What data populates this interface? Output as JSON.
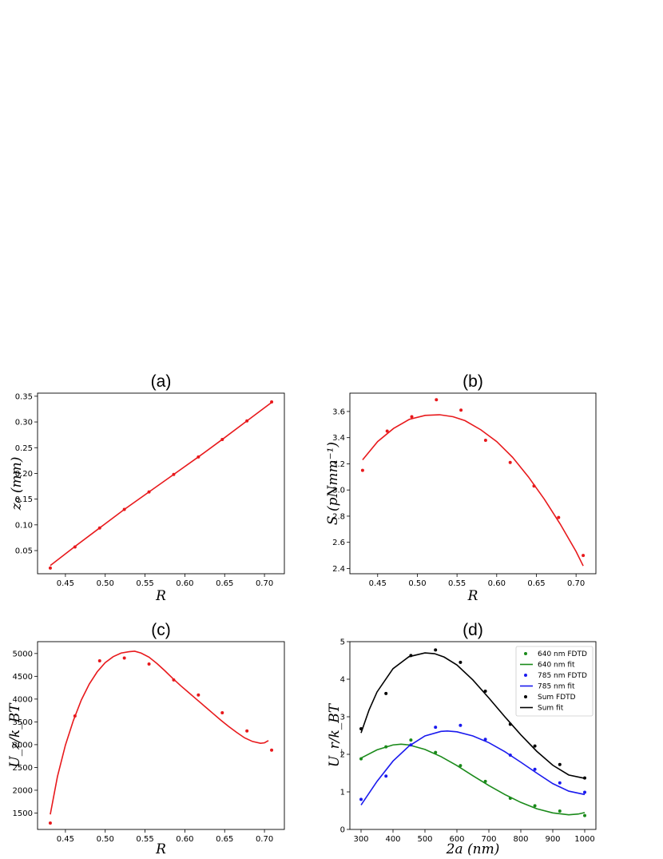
{
  "chart_data": [
    {
      "panel": "a",
      "type": "scatter",
      "title": "(a)",
      "xlabel": "R",
      "ylabel": "z₀ (mm)",
      "xlim": [
        0.415,
        0.725
      ],
      "ylim": [
        0.005,
        0.356
      ],
      "xticks": [
        "0.45",
        "0.50",
        "0.55",
        "0.60",
        "0.65",
        "0.70"
      ],
      "yticks": [
        "0.05",
        "0.10",
        "0.15",
        "0.20",
        "0.25",
        "0.30",
        "0.35"
      ],
      "series": [
        {
          "kind": "points",
          "color": "#e8191c",
          "x": [
            0.431,
            0.462,
            0.493,
            0.524,
            0.555,
            0.586,
            0.617,
            0.647,
            0.678,
            0.709
          ],
          "y": [
            0.016,
            0.057,
            0.094,
            0.13,
            0.164,
            0.198,
            0.232,
            0.266,
            0.302,
            0.339
          ]
        },
        {
          "kind": "line",
          "color": "#e8191c",
          "x": [
            0.431,
            0.462,
            0.493,
            0.524,
            0.555,
            0.586,
            0.617,
            0.647,
            0.678,
            0.709
          ],
          "y": [
            0.021,
            0.058,
            0.094,
            0.13,
            0.164,
            0.198,
            0.232,
            0.266,
            0.302,
            0.338
          ]
        }
      ],
      "grid": false
    },
    {
      "panel": "b",
      "type": "scatter",
      "title": "(b)",
      "xlabel": "R",
      "ylabel": "S (pNmm⁻¹)",
      "xlim": [
        0.415,
        0.725
      ],
      "ylim": [
        2.36,
        3.74
      ],
      "xticks": [
        "0.45",
        "0.50",
        "0.55",
        "0.60",
        "0.65",
        "0.70"
      ],
      "yticks": [
        "2.4",
        "2.6",
        "2.8",
        "3.0",
        "3.2",
        "3.4",
        "3.6"
      ],
      "series": [
        {
          "kind": "points",
          "color": "#e8191c",
          "x": [
            0.431,
            0.462,
            0.493,
            0.524,
            0.555,
            0.586,
            0.617,
            0.647,
            0.678,
            0.709
          ],
          "y": [
            3.15,
            3.45,
            3.56,
            3.69,
            3.61,
            3.38,
            3.21,
            3.03,
            2.79,
            2.5
          ]
        },
        {
          "kind": "line",
          "color": "#e8191c",
          "x": [
            0.431,
            0.45,
            0.47,
            0.49,
            0.51,
            0.528,
            0.545,
            0.56,
            0.58,
            0.6,
            0.62,
            0.64,
            0.66,
            0.68,
            0.7,
            0.709
          ],
          "y": [
            3.23,
            3.37,
            3.47,
            3.54,
            3.57,
            3.575,
            3.56,
            3.53,
            3.46,
            3.37,
            3.25,
            3.1,
            2.93,
            2.74,
            2.53,
            2.42
          ]
        }
      ],
      "grid": false
    },
    {
      "panel": "c",
      "type": "scatter",
      "title": "(c)",
      "xlabel": "R",
      "ylabel": "U_z/k_BT",
      "xlim": [
        0.415,
        0.725
      ],
      "ylim": [
        1140,
        5260
      ],
      "xticks": [
        "0.45",
        "0.50",
        "0.55",
        "0.60",
        "0.65",
        "0.70"
      ],
      "yticks": [
        "1500",
        "2000",
        "2500",
        "3000",
        "3500",
        "4000",
        "4500",
        "5000"
      ],
      "series": [
        {
          "kind": "points",
          "color": "#e8191c",
          "x": [
            0.431,
            0.462,
            0.493,
            0.524,
            0.555,
            0.586,
            0.617,
            0.647,
            0.678,
            0.709
          ],
          "y": [
            1280,
            3630,
            4840,
            4900,
            4770,
            4420,
            4090,
            3700,
            3300,
            2880
          ]
        },
        {
          "kind": "line",
          "color": "#e8191c",
          "x": [
            0.431,
            0.44,
            0.45,
            0.46,
            0.47,
            0.48,
            0.49,
            0.5,
            0.51,
            0.52,
            0.53,
            0.537,
            0.545,
            0.555,
            0.565,
            0.575,
            0.585,
            0.595,
            0.605,
            0.615,
            0.625,
            0.635,
            0.645,
            0.655,
            0.665,
            0.675,
            0.685,
            0.695,
            0.7,
            0.705
          ],
          "y": [
            1470,
            2300,
            2990,
            3530,
            3980,
            4330,
            4600,
            4800,
            4930,
            5010,
            5040,
            5050,
            5010,
            4920,
            4780,
            4620,
            4450,
            4290,
            4140,
            3990,
            3840,
            3690,
            3540,
            3400,
            3270,
            3150,
            3070,
            3030,
            3040,
            3090
          ]
        }
      ],
      "grid": false
    },
    {
      "panel": "d",
      "type": "scatter",
      "title": "(d)",
      "xlabel": "2a (nm)",
      "ylabel": "U_r/k_BT",
      "xlim": [
        265,
        1035
      ],
      "ylim": [
        0,
        5
      ],
      "xticks": [
        "300",
        "400",
        "500",
        "600",
        "700",
        "800",
        "900",
        "1000"
      ],
      "yticks": [
        "0",
        "1",
        "2",
        "3",
        "4",
        "5"
      ],
      "legend": "top-right",
      "series": [
        {
          "name": "640 nm FDTD",
          "kind": "points",
          "color": "#1a8a1a",
          "x": [
            300,
            378,
            456,
            533,
            611,
            689,
            767,
            844,
            922,
            1000
          ],
          "y": [
            1.88,
            2.2,
            2.38,
            2.05,
            1.7,
            1.28,
            0.83,
            0.63,
            0.49,
            0.37
          ]
        },
        {
          "name": "640 nm fit",
          "kind": "line",
          "color": "#1a8a1a",
          "x": [
            300,
            350,
            400,
            425,
            450,
            500,
            550,
            600,
            650,
            700,
            750,
            800,
            850,
            900,
            950,
            980,
            1000
          ],
          "y": [
            1.9,
            2.12,
            2.25,
            2.27,
            2.25,
            2.13,
            1.94,
            1.7,
            1.43,
            1.17,
            0.93,
            0.72,
            0.55,
            0.44,
            0.39,
            0.41,
            0.45
          ]
        },
        {
          "name": "785 nm FDTD",
          "kind": "points",
          "color": "#1a1aee",
          "x": [
            300,
            378,
            456,
            533,
            611,
            689,
            767,
            844,
            922,
            1000
          ],
          "y": [
            0.8,
            1.42,
            2.25,
            2.72,
            2.77,
            2.4,
            1.98,
            1.6,
            1.24,
            0.99
          ]
        },
        {
          "name": "785 nm fit",
          "kind": "line",
          "color": "#1a1aee",
          "x": [
            300,
            350,
            400,
            450,
            500,
            550,
            570,
            600,
            650,
            700,
            750,
            800,
            850,
            900,
            950,
            1000
          ],
          "y": [
            0.65,
            1.28,
            1.82,
            2.22,
            2.49,
            2.61,
            2.62,
            2.6,
            2.49,
            2.31,
            2.07,
            1.79,
            1.5,
            1.22,
            1.02,
            0.93
          ]
        },
        {
          "name": "Sum FDTD",
          "kind": "points",
          "color": "#000000",
          "x": [
            300,
            378,
            456,
            533,
            611,
            689,
            767,
            844,
            922,
            1000
          ],
          "y": [
            2.68,
            3.62,
            4.63,
            4.78,
            4.45,
            3.68,
            2.8,
            2.22,
            1.73,
            1.37
          ]
        },
        {
          "name": "Sum fit",
          "kind": "line",
          "color": "#000000",
          "x": [
            300,
            325,
            350,
            400,
            450,
            500,
            530,
            560,
            600,
            650,
            700,
            750,
            800,
            850,
            900,
            950,
            1000
          ],
          "y": [
            2.57,
            3.18,
            3.66,
            4.28,
            4.6,
            4.7,
            4.68,
            4.59,
            4.38,
            3.98,
            3.5,
            3.0,
            2.52,
            2.08,
            1.71,
            1.45,
            1.36
          ]
        }
      ],
      "grid": false
    }
  ]
}
